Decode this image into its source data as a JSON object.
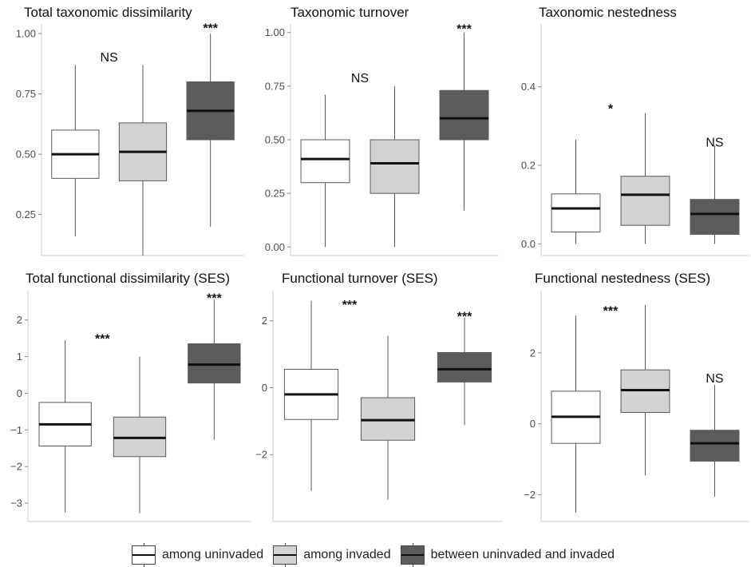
{
  "colors": {
    "among_uninvaded": "#ffffff",
    "among_invaded": "#d3d3d3",
    "between": "#5c5c5c",
    "border": "#595959",
    "median": "#111111",
    "axis": "#cccccc",
    "tick_text": "#4d4d4d"
  },
  "legend": {
    "items": [
      {
        "label": "among uninvaded",
        "color": "#ffffff"
      },
      {
        "label": "among invaded",
        "color": "#d3d3d3"
      },
      {
        "label": "between uninvaded and invaded",
        "color": "#5c5c5c"
      }
    ]
  },
  "chart_data": [
    {
      "type": "boxplot",
      "title": "Total taxonomic dissimilarity",
      "ylim": [
        0.08,
        1.04
      ],
      "yticks": [
        0.25,
        0.5,
        0.75,
        1.0
      ],
      "ytick_labels": [
        "0.25",
        "0.50",
        "0.75",
        "1.00"
      ],
      "boxes": [
        {
          "group": "among uninvaded",
          "min": 0.16,
          "q1": 0.4,
          "median": 0.5,
          "q3": 0.6,
          "max": 0.87
        },
        {
          "group": "among invaded",
          "min": 0.08,
          "q1": 0.39,
          "median": 0.51,
          "q3": 0.63,
          "max": 0.87
        },
        {
          "group": "between uninvaded and invaded",
          "min": 0.2,
          "q1": 0.56,
          "median": 0.68,
          "q3": 0.8,
          "max": 1.0
        }
      ],
      "annotations": [
        {
          "text": "NS",
          "x": 1.5,
          "y": 0.905
        },
        {
          "text": "***",
          "x": 3,
          "y": 1.025
        }
      ]
    },
    {
      "type": "boxplot",
      "title": "Taxonomic turnover",
      "ylim": [
        -0.04,
        1.04
      ],
      "yticks": [
        0,
        0.25,
        0.5,
        0.75,
        1.0
      ],
      "ytick_labels": [
        "0.00",
        "0.25",
        "0.50",
        "0.75",
        "1.00"
      ],
      "boxes": [
        {
          "group": "among uninvaded",
          "min": 0.0,
          "q1": 0.3,
          "median": 0.41,
          "q3": 0.5,
          "max": 0.71
        },
        {
          "group": "among invaded",
          "min": 0.0,
          "q1": 0.25,
          "median": 0.39,
          "q3": 0.5,
          "max": 0.75
        },
        {
          "group": "between uninvaded and invaded",
          "min": 0.17,
          "q1": 0.5,
          "median": 0.6,
          "q3": 0.73,
          "max": 1.0
        }
      ],
      "annotations": [
        {
          "text": "NS",
          "x": 1.5,
          "y": 0.79
        },
        {
          "text": "***",
          "x": 3,
          "y": 1.02
        }
      ]
    },
    {
      "type": "boxplot",
      "title": "Taxonomic nestedness",
      "ylim": [
        -0.03,
        0.56
      ],
      "yticks": [
        0.0,
        0.2,
        0.4
      ],
      "ytick_labels": [
        "0.0",
        "0.2",
        "0.4"
      ],
      "boxes": [
        {
          "group": "among uninvaded",
          "min": 0.0,
          "q1": 0.03,
          "median": 0.09,
          "q3": 0.127,
          "max": 0.265
        },
        {
          "group": "among invaded",
          "min": 0.0,
          "q1": 0.047,
          "median": 0.125,
          "q3": 0.172,
          "max": 0.333
        },
        {
          "group": "between uninvaded and invaded",
          "min": 0.0,
          "q1": 0.024,
          "median": 0.076,
          "q3": 0.113,
          "max": 0.25
        }
      ],
      "annotations": [
        {
          "text": "*",
          "x": 1.5,
          "y": 0.345
        },
        {
          "text": "NS",
          "x": 3,
          "y": 0.26
        }
      ]
    },
    {
      "type": "boxplot",
      "title": "Total functional dissimilarity (SES)",
      "ylim": [
        -3.5,
        2.8
      ],
      "yticks": [
        -3,
        -2,
        -1,
        0,
        1,
        2
      ],
      "ytick_labels": [
        "−3",
        "−2",
        "−1",
        "0",
        "1",
        "2"
      ],
      "boxes": [
        {
          "group": "among uninvaded",
          "min": -3.25,
          "q1": -1.44,
          "median": -0.85,
          "q3": -0.25,
          "max": 1.45
        },
        {
          "group": "among invaded",
          "min": -3.27,
          "q1": -1.73,
          "median": -1.22,
          "q3": -0.65,
          "max": 1.0
        },
        {
          "group": "between uninvaded and invaded",
          "min": -1.27,
          "q1": 0.28,
          "median": 0.78,
          "q3": 1.35,
          "max": 2.56
        }
      ],
      "annotations": [
        {
          "text": "***",
          "x": 1.5,
          "y": 1.5
        },
        {
          "text": "***",
          "x": 3,
          "y": 2.62
        }
      ]
    },
    {
      "type": "boxplot",
      "title": "Functional turnover (SES)",
      "ylim": [
        -4.0,
        2.9
      ],
      "yticks": [
        -2,
        0,
        2
      ],
      "ytick_labels": [
        "−2",
        "0",
        "2"
      ],
      "boxes": [
        {
          "group": "among uninvaded",
          "min": -3.08,
          "q1": -0.95,
          "median": -0.2,
          "q3": 0.55,
          "max": 2.6
        },
        {
          "group": "among invaded",
          "min": -3.35,
          "q1": -1.57,
          "median": -0.97,
          "q3": -0.3,
          "max": 1.55
        },
        {
          "group": "between uninvaded and invaded",
          "min": -1.12,
          "q1": 0.17,
          "median": 0.55,
          "q3": 1.05,
          "max": 2.1
        }
      ],
      "annotations": [
        {
          "text": "***",
          "x": 1.5,
          "y": 2.5
        },
        {
          "text": "***",
          "x": 3,
          "y": 2.15
        }
      ]
    },
    {
      "type": "boxplot",
      "title": "Functional nestedness (SES)",
      "ylim": [
        -2.75,
        3.75
      ],
      "yticks": [
        -2,
        0,
        2
      ],
      "ytick_labels": [
        "−2",
        "0",
        "2"
      ],
      "boxes": [
        {
          "group": "among uninvaded",
          "min": -2.5,
          "q1": -0.55,
          "median": 0.2,
          "q3": 0.92,
          "max": 3.05
        },
        {
          "group": "among invaded",
          "min": -1.45,
          "q1": 0.32,
          "median": 0.95,
          "q3": 1.52,
          "max": 3.35
        },
        {
          "group": "between uninvaded and invaded",
          "min": -2.05,
          "q1": -1.05,
          "median": -0.55,
          "q3": -0.18,
          "max": 1.1
        }
      ],
      "annotations": [
        {
          "text": "***",
          "x": 1.5,
          "y": 3.2
        },
        {
          "text": "NS",
          "x": 3,
          "y": 1.3
        }
      ]
    }
  ]
}
